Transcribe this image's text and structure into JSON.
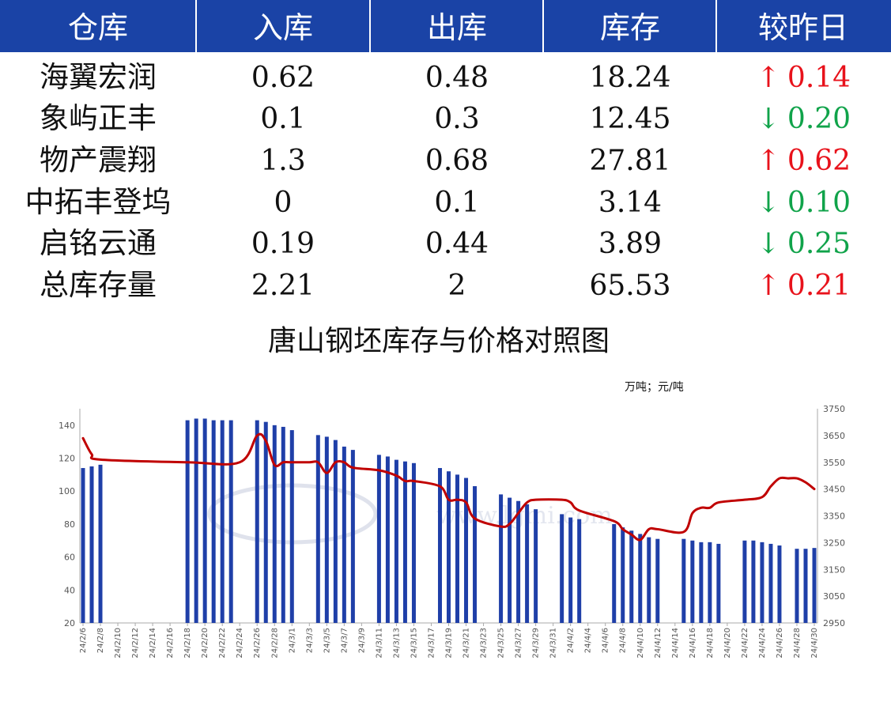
{
  "table": {
    "headers": [
      "仓库",
      "入库",
      "出库",
      "库存",
      "较昨日"
    ],
    "rows": [
      {
        "name": "海翼宏润",
        "in": "0.62",
        "out": "0.48",
        "stock": "18.24",
        "dir": "up",
        "arrow": "↑",
        "change": "0.14"
      },
      {
        "name": "象屿正丰",
        "in": "0.1",
        "out": "0.3",
        "stock": "12.45",
        "dir": "down",
        "arrow": "↓",
        "change": "0.20"
      },
      {
        "name": "物产震翔",
        "in": "1.3",
        "out": "0.68",
        "stock": "27.81",
        "dir": "up",
        "arrow": "↑",
        "change": "0.62"
      },
      {
        "name": "中拓丰登坞",
        "in": "0",
        "out": "0.1",
        "stock": "3.14",
        "dir": "down",
        "arrow": "↓",
        "change": "0.10"
      },
      {
        "name": "启铭云通",
        "in": "0.19",
        "out": "0.44",
        "stock": "3.89",
        "dir": "down",
        "arrow": "↓",
        "change": "0.25"
      },
      {
        "name": "总库存量",
        "in": "2.21",
        "out": "2",
        "stock": "65.53",
        "dir": "up",
        "arrow": "↑",
        "change": "0.21"
      }
    ],
    "colors": {
      "header": "#1a43a6",
      "up": "#e8121b",
      "down": "#10a34a"
    }
  },
  "chart_data": {
    "type": "bar+line",
    "title": "唐山钢坯库存与价格对照图",
    "unit_label": "万吨；元/吨",
    "watermark": "www.lgmi.com",
    "x_tick_labels": [
      "24/2/6",
      "24/2/8",
      "24/2/10",
      "24/2/12",
      "24/2/14",
      "24/2/16",
      "24/2/18",
      "24/2/20",
      "24/2/22",
      "24/2/24",
      "24/2/26",
      "24/2/28",
      "24/3/1",
      "24/3/3",
      "24/3/5",
      "24/3/7",
      "24/3/9",
      "24/3/11",
      "24/3/13",
      "24/3/15",
      "24/3/17",
      "24/3/19",
      "24/3/21",
      "24/3/23",
      "24/3/25",
      "24/3/27",
      "24/3/29",
      "24/3/31",
      "24/4/2",
      "24/4/4",
      "24/4/6",
      "24/4/8",
      "24/4/10",
      "24/4/12",
      "24/4/14",
      "24/4/16",
      "24/4/18",
      "24/4/20",
      "24/4/22",
      "24/4/24",
      "24/4/26",
      "24/4/28",
      "24/4/30"
    ],
    "y_left": {
      "min": 20,
      "max": 150,
      "ticks": [
        20,
        40,
        60,
        80,
        100,
        120,
        140
      ]
    },
    "y_right": {
      "min": 2950,
      "max": 3750,
      "ticks": [
        2950,
        3050,
        3150,
        3250,
        3350,
        3450,
        3550,
        3650,
        3750
      ]
    },
    "grid": false,
    "series": [
      {
        "kind": "bar",
        "axis": "left",
        "color": "#1f3fa8",
        "points": [
          [
            "24/2/6",
            114
          ],
          [
            "24/2/7",
            115
          ],
          [
            "24/2/8",
            116
          ],
          [
            "24/2/18",
            143
          ],
          [
            "24/2/19",
            144
          ],
          [
            "24/2/20",
            144
          ],
          [
            "24/2/21",
            143
          ],
          [
            "24/2/22",
            143
          ],
          [
            "24/2/23",
            143
          ],
          [
            "24/2/26",
            143
          ],
          [
            "24/2/27",
            142
          ],
          [
            "24/2/28",
            140
          ],
          [
            "24/2/29",
            139
          ],
          [
            "24/3/1",
            137
          ],
          [
            "24/3/4",
            134
          ],
          [
            "24/3/5",
            133
          ],
          [
            "24/3/6",
            131
          ],
          [
            "24/3/7",
            127
          ],
          [
            "24/3/8",
            125
          ],
          [
            "24/3/11",
            122
          ],
          [
            "24/3/12",
            121
          ],
          [
            "24/3/13",
            119
          ],
          [
            "24/3/14",
            118
          ],
          [
            "24/3/15",
            117
          ],
          [
            "24/3/18",
            114
          ],
          [
            "24/3/19",
            112
          ],
          [
            "24/3/20",
            110
          ],
          [
            "24/3/21",
            108
          ],
          [
            "24/3/22",
            103
          ],
          [
            "24/3/25",
            98
          ],
          [
            "24/3/26",
            96
          ],
          [
            "24/3/27",
            94
          ],
          [
            "24/3/28",
            92
          ],
          [
            "24/3/29",
            89
          ],
          [
            "24/4/1",
            86
          ],
          [
            "24/4/2",
            84
          ],
          [
            "24/4/3",
            83
          ],
          [
            "24/4/7",
            80
          ],
          [
            "24/4/8",
            78
          ],
          [
            "24/4/9",
            76
          ],
          [
            "24/4/10",
            74
          ],
          [
            "24/4/11",
            72
          ],
          [
            "24/4/12",
            71
          ],
          [
            "24/4/15",
            71
          ],
          [
            "24/4/16",
            70
          ],
          [
            "24/4/17",
            69
          ],
          [
            "24/4/18",
            69
          ],
          [
            "24/4/19",
            68
          ],
          [
            "24/4/22",
            70
          ],
          [
            "24/4/23",
            70
          ],
          [
            "24/4/24",
            69
          ],
          [
            "24/4/25",
            68
          ],
          [
            "24/4/26",
            67
          ],
          [
            "24/4/28",
            65
          ],
          [
            "24/4/29",
            65
          ],
          [
            "24/4/30",
            65.5
          ]
        ]
      },
      {
        "kind": "line",
        "axis": "right",
        "color": "#c00000",
        "points": [
          [
            "24/2/6",
            3640
          ],
          [
            "24/2/7",
            3580
          ],
          [
            "24/2/8",
            3560
          ],
          [
            "24/2/18",
            3550
          ],
          [
            "24/2/24",
            3550
          ],
          [
            "24/2/26",
            3650
          ],
          [
            "24/2/27",
            3630
          ],
          [
            "24/2/28",
            3540
          ],
          [
            "24/2/29",
            3550
          ],
          [
            "24/3/1",
            3550
          ],
          [
            "24/3/3",
            3550
          ],
          [
            "24/3/4",
            3550
          ],
          [
            "24/3/5",
            3510
          ],
          [
            "24/3/6",
            3550
          ],
          [
            "24/3/7",
            3550
          ],
          [
            "24/3/8",
            3530
          ],
          [
            "24/3/11",
            3520
          ],
          [
            "24/3/13",
            3500
          ],
          [
            "24/3/14",
            3480
          ],
          [
            "24/3/15",
            3480
          ],
          [
            "24/3/18",
            3460
          ],
          [
            "24/3/19",
            3410
          ],
          [
            "24/3/20",
            3410
          ],
          [
            "24/3/21",
            3400
          ],
          [
            "24/3/22",
            3340
          ],
          [
            "24/3/25",
            3310
          ],
          [
            "24/3/26",
            3320
          ],
          [
            "24/3/27",
            3360
          ],
          [
            "24/3/28",
            3400
          ],
          [
            "24/3/29",
            3410
          ],
          [
            "24/4/1",
            3410
          ],
          [
            "24/4/2",
            3400
          ],
          [
            "24/4/3",
            3370
          ],
          [
            "24/4/7",
            3330
          ],
          [
            "24/4/8",
            3300
          ],
          [
            "24/4/9",
            3280
          ],
          [
            "24/4/10",
            3260
          ],
          [
            "24/4/11",
            3300
          ],
          [
            "24/4/12",
            3300
          ],
          [
            "24/4/15",
            3290
          ],
          [
            "24/4/16",
            3360
          ],
          [
            "24/4/17",
            3380
          ],
          [
            "24/4/18",
            3380
          ],
          [
            "24/4/19",
            3400
          ],
          [
            "24/4/22",
            3410
          ],
          [
            "24/4/24",
            3420
          ],
          [
            "24/4/25",
            3460
          ],
          [
            "24/4/26",
            3490
          ],
          [
            "24/4/27",
            3490
          ],
          [
            "24/4/28",
            3490
          ],
          [
            "24/4/29",
            3475
          ],
          [
            "24/4/30",
            3450
          ]
        ]
      }
    ]
  }
}
